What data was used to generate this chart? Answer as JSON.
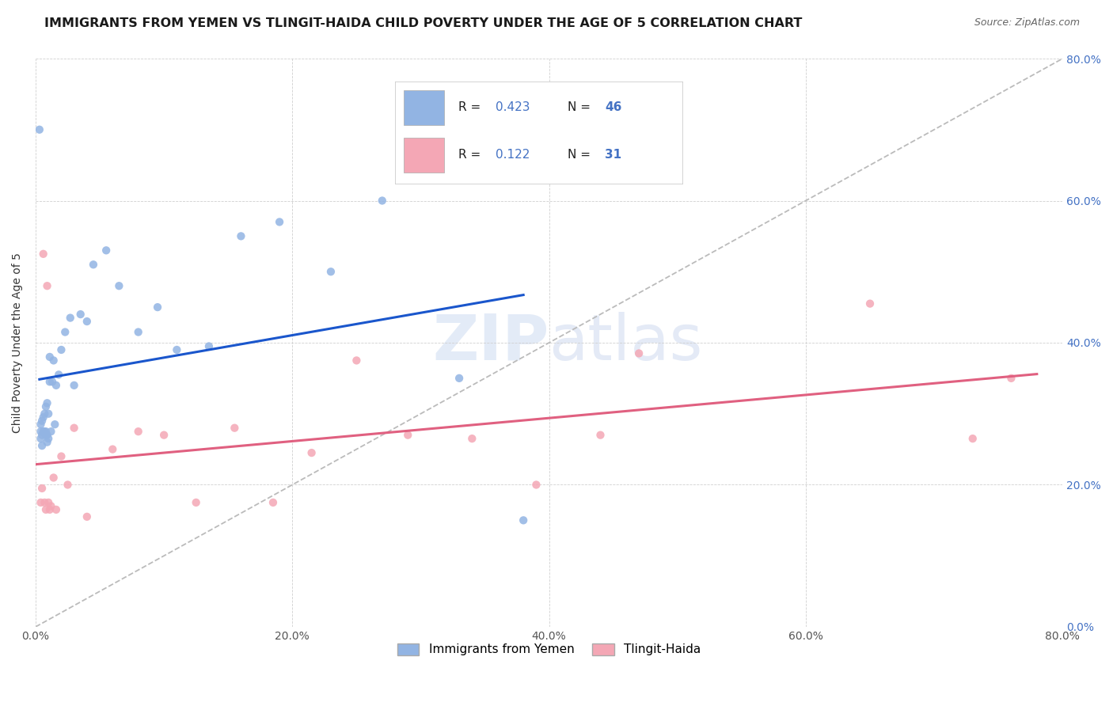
{
  "title": "IMMIGRANTS FROM YEMEN VS TLINGIT-HAIDA CHILD POVERTY UNDER THE AGE OF 5 CORRELATION CHART",
  "source": "Source: ZipAtlas.com",
  "ylabel": "Child Poverty Under the Age of 5",
  "xlim": [
    0,
    0.8
  ],
  "ylim": [
    0,
    0.8
  ],
  "xtick_values": [
    0.0,
    0.2,
    0.4,
    0.6,
    0.8
  ],
  "ytick_values": [
    0.0,
    0.2,
    0.4,
    0.6,
    0.8
  ],
  "legend_label1": "Immigrants from Yemen",
  "legend_label2": "Tlingit-Haida",
  "R1": "0.423",
  "N1": "46",
  "R2": "0.122",
  "N2": "31",
  "color_blue": "#92b4e3",
  "color_pink": "#f4a7b5",
  "line_color_blue": "#1a56cc",
  "line_color_pink": "#e06080",
  "diagonal_color": "#bbbbbb",
  "watermark_color": "#c8d8f0",
  "background_color": "#ffffff",
  "title_fontsize": 11.5,
  "source_fontsize": 9,
  "scatter_alpha": 0.85,
  "scatter_size": 55,
  "blue_scatter_x": [
    0.003,
    0.004,
    0.004,
    0.004,
    0.005,
    0.005,
    0.005,
    0.006,
    0.006,
    0.007,
    0.007,
    0.008,
    0.008,
    0.008,
    0.009,
    0.009,
    0.009,
    0.01,
    0.01,
    0.011,
    0.011,
    0.012,
    0.013,
    0.014,
    0.015,
    0.016,
    0.018,
    0.02,
    0.023,
    0.027,
    0.03,
    0.035,
    0.04,
    0.045,
    0.055,
    0.065,
    0.08,
    0.095,
    0.11,
    0.135,
    0.16,
    0.19,
    0.23,
    0.27,
    0.33,
    0.38
  ],
  "blue_scatter_y": [
    0.7,
    0.265,
    0.275,
    0.285,
    0.255,
    0.27,
    0.29,
    0.275,
    0.295,
    0.275,
    0.3,
    0.27,
    0.275,
    0.31,
    0.26,
    0.27,
    0.315,
    0.265,
    0.3,
    0.345,
    0.38,
    0.275,
    0.345,
    0.375,
    0.285,
    0.34,
    0.355,
    0.39,
    0.415,
    0.435,
    0.34,
    0.44,
    0.43,
    0.51,
    0.53,
    0.48,
    0.415,
    0.45,
    0.39,
    0.395,
    0.55,
    0.57,
    0.5,
    0.6,
    0.35,
    0.15
  ],
  "pink_scatter_x": [
    0.004,
    0.005,
    0.006,
    0.007,
    0.008,
    0.009,
    0.01,
    0.011,
    0.012,
    0.014,
    0.016,
    0.02,
    0.025,
    0.03,
    0.04,
    0.06,
    0.08,
    0.1,
    0.125,
    0.155,
    0.185,
    0.215,
    0.25,
    0.29,
    0.34,
    0.39,
    0.44,
    0.47,
    0.65,
    0.73,
    0.76
  ],
  "pink_scatter_y": [
    0.175,
    0.195,
    0.525,
    0.175,
    0.165,
    0.48,
    0.175,
    0.165,
    0.17,
    0.21,
    0.165,
    0.24,
    0.2,
    0.28,
    0.155,
    0.25,
    0.275,
    0.27,
    0.175,
    0.28,
    0.175,
    0.245,
    0.375,
    0.27,
    0.265,
    0.2,
    0.27,
    0.385,
    0.455,
    0.265,
    0.35
  ]
}
